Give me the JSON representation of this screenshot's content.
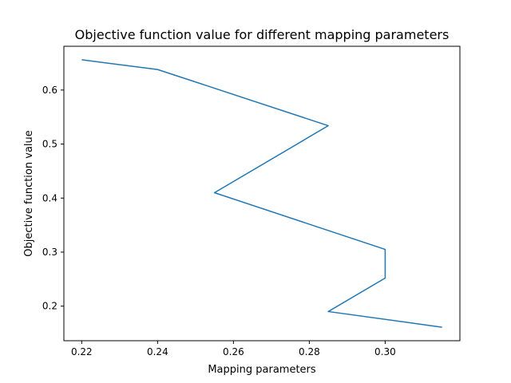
{
  "chart_data": {
    "type": "line",
    "title": "Objective function value for different mapping parameters",
    "xlabel": "Mapping parameters",
    "ylabel": "Objective function value",
    "xlim": [
      0.2153,
      0.3197
    ],
    "ylim": [
      0.136,
      0.681
    ],
    "xticks": [
      0.22,
      0.24,
      0.26,
      0.28,
      0.3
    ],
    "xtick_labels": [
      "0.22",
      "0.24",
      "0.26",
      "0.28",
      "0.30"
    ],
    "yticks": [
      0.2,
      0.3,
      0.4,
      0.5,
      0.6
    ],
    "ytick_labels": [
      "0.2",
      "0.3",
      "0.4",
      "0.5",
      "0.6"
    ],
    "grid": false,
    "series": [
      {
        "color": "#1f77b4",
        "x": [
          0.22,
          0.24,
          0.285,
          0.255,
          0.3,
          0.3,
          0.285,
          0.315
        ],
        "y": [
          0.656,
          0.638,
          0.534,
          0.41,
          0.305,
          0.252,
          0.19,
          0.161
        ]
      }
    ]
  }
}
